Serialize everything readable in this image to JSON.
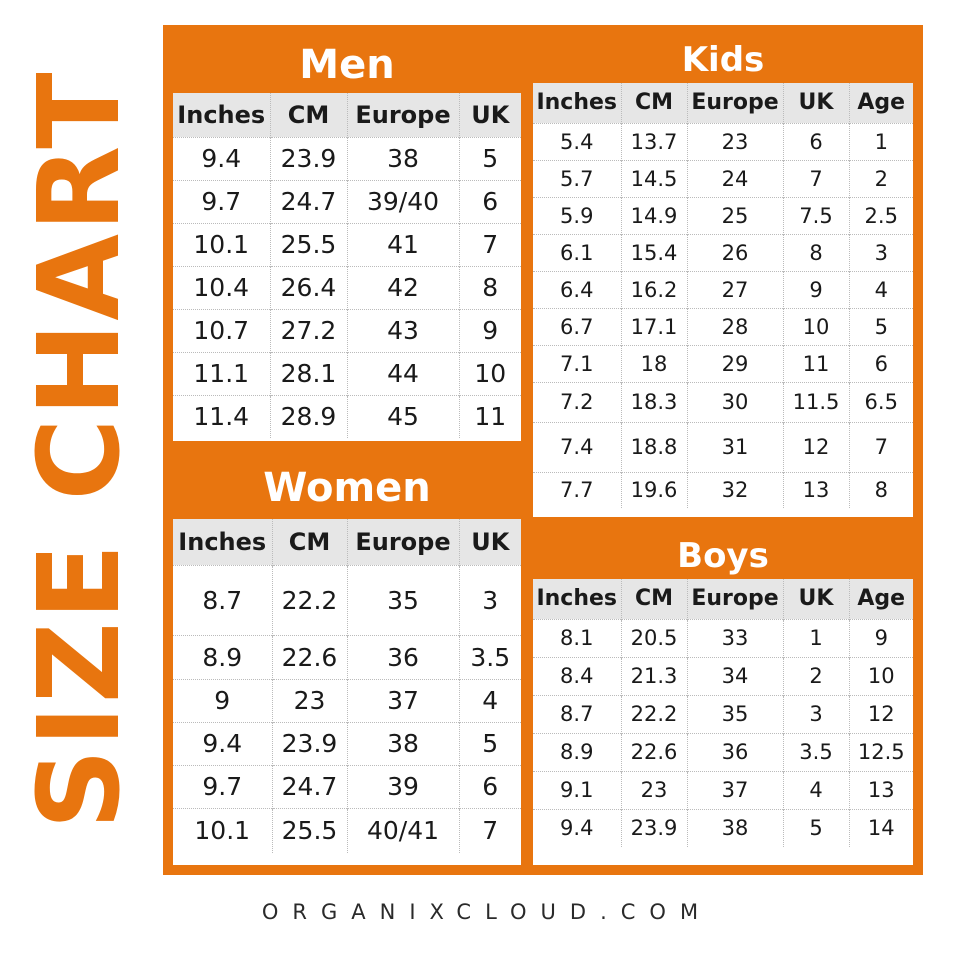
{
  "title": "SIZE CHART",
  "footer": "ORGANIXCLOUD.COM",
  "colors": {
    "accent": "#e8750f",
    "header_bg": "#e6e6e6",
    "text": "#1a1a1a"
  },
  "men": {
    "label": "Men",
    "columns": [
      "Inches",
      "CM",
      "Europe",
      "UK"
    ],
    "rows": [
      [
        "9.4",
        "23.9",
        "38",
        "5"
      ],
      [
        "9.7",
        "24.7",
        "39/40",
        "6"
      ],
      [
        "10.1",
        "25.5",
        "41",
        "7"
      ],
      [
        "10.4",
        "26.4",
        "42",
        "8"
      ],
      [
        "10.7",
        "27.2",
        "43",
        "9"
      ],
      [
        "11.1",
        "28.1",
        "44",
        "10"
      ],
      [
        "11.4",
        "28.9",
        "45",
        "11"
      ]
    ]
  },
  "women": {
    "label": "Women",
    "columns": [
      "Inches",
      "CM",
      "Europe",
      "UK"
    ],
    "rows": [
      [
        "8.7",
        "22.2",
        "35",
        "3"
      ],
      [
        "8.9",
        "22.6",
        "36",
        "3.5"
      ],
      [
        "9",
        "23",
        "37",
        "4"
      ],
      [
        "9.4",
        "23.9",
        "38",
        "5"
      ],
      [
        "9.7",
        "24.7",
        "39",
        "6"
      ],
      [
        "10.1",
        "25.5",
        "40/41",
        "7"
      ]
    ]
  },
  "kids": {
    "label": "Kids",
    "columns": [
      "Inches",
      "CM",
      "Europe",
      "UK",
      "Age"
    ],
    "rows": [
      [
        "5.4",
        "13.7",
        "23",
        "6",
        "1"
      ],
      [
        "5.7",
        "14.5",
        "24",
        "7",
        "2"
      ],
      [
        "5.9",
        "14.9",
        "25",
        "7.5",
        "2.5"
      ],
      [
        "6.1",
        "15.4",
        "26",
        "8",
        "3"
      ],
      [
        "6.4",
        "16.2",
        "27",
        "9",
        "4"
      ],
      [
        "6.7",
        "17.1",
        "28",
        "10",
        "5"
      ],
      [
        "7.1",
        "18",
        "29",
        "11",
        "6"
      ],
      [
        "7.2",
        "18.3",
        "30",
        "11.5",
        "6.5"
      ],
      [
        "7.4",
        "18.8",
        "31",
        "12",
        "7"
      ],
      [
        "7.7",
        "19.6",
        "32",
        "13",
        "8"
      ]
    ]
  },
  "boys": {
    "label": "Boys",
    "columns": [
      "Inches",
      "CM",
      "Europe",
      "UK",
      "Age"
    ],
    "rows": [
      [
        "8.1",
        "20.5",
        "33",
        "1",
        "9"
      ],
      [
        "8.4",
        "21.3",
        "34",
        "2",
        "10"
      ],
      [
        "8.7",
        "22.2",
        "35",
        "3",
        "12"
      ],
      [
        "8.9",
        "22.6",
        "36",
        "3.5",
        "12.5"
      ],
      [
        "9.1",
        "23",
        "37",
        "4",
        "13"
      ],
      [
        "9.4",
        "23.9",
        "38",
        "5",
        "14"
      ]
    ]
  }
}
